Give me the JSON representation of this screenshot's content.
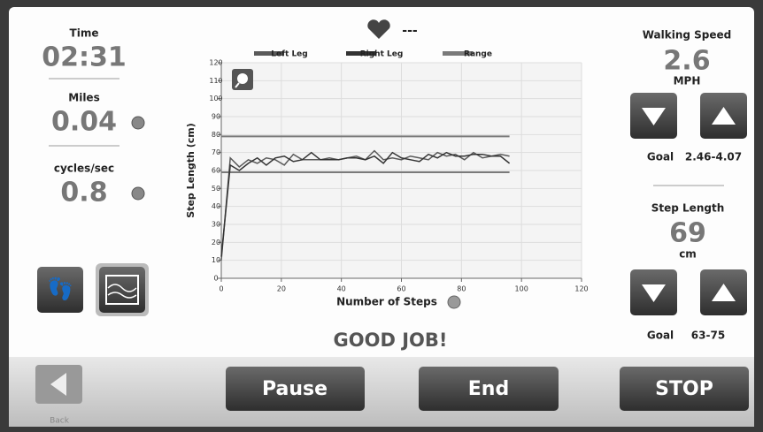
{
  "left_panel": {
    "time_label": "Time",
    "time": "02:31",
    "miles_label": "Miles",
    "miles": "0.04",
    "cycles_label": "cycles/sec",
    "cycles": "0.8"
  },
  "heart_rate": "---",
  "right_panel": {
    "speed_label": "Walking Speed",
    "speed": "2.6",
    "speed_unit": "MPH",
    "speed_goal_label": "Goal",
    "speed_goal": "2.46-4.07",
    "step_label": "Step Length",
    "step": "69",
    "step_unit": "cm",
    "step_goal_label": "Goal",
    "step_goal": "63-75"
  },
  "message": "GOOD JOB!",
  "buttons": {
    "back": "Back",
    "pause": "Pause",
    "end": "End",
    "stop": "STOP"
  },
  "chart_data": {
    "type": "line",
    "x_label": "Number of Steps",
    "y_label": "Step Length (cm)",
    "x": [
      0,
      3,
      6,
      9,
      12,
      15,
      18,
      21,
      24,
      27,
      30,
      33,
      36,
      39,
      42,
      45,
      48,
      51,
      54,
      57,
      60,
      63,
      66,
      69,
      72,
      75,
      78,
      81,
      84,
      87,
      90,
      93,
      96
    ],
    "series": [
      {
        "name": "Left Leg",
        "color": "#5a5a5a",
        "values": [
          10,
          67,
          62,
          66,
          64,
          67,
          66,
          63,
          69,
          66,
          66,
          66,
          67,
          66,
          67,
          68,
          66,
          71,
          66,
          67,
          66,
          68,
          67,
          66,
          70,
          68,
          69,
          66,
          70,
          67,
          68,
          69,
          68
        ]
      },
      {
        "name": "Right Leg",
        "color": "#333333",
        "values": [
          12,
          63,
          60,
          64,
          67,
          63,
          67,
          68,
          65,
          66,
          70,
          66,
          66,
          66,
          67,
          67,
          66,
          68,
          64,
          70,
          67,
          66,
          65,
          69,
          67,
          70,
          68,
          68,
          69,
          69,
          68,
          68,
          64
        ]
      }
    ],
    "range": {
      "name": "Range",
      "color": "#7a7a7a",
      "values": [
        59,
        79
      ]
    },
    "xlim": [
      0,
      120
    ],
    "ylim": [
      0,
      120
    ],
    "xticks": [
      0,
      20,
      40,
      60,
      80,
      100,
      120
    ],
    "yticks": [
      0,
      10,
      20,
      30,
      40,
      50,
      60,
      70,
      80,
      90,
      100,
      110,
      120
    ],
    "grid": true
  }
}
